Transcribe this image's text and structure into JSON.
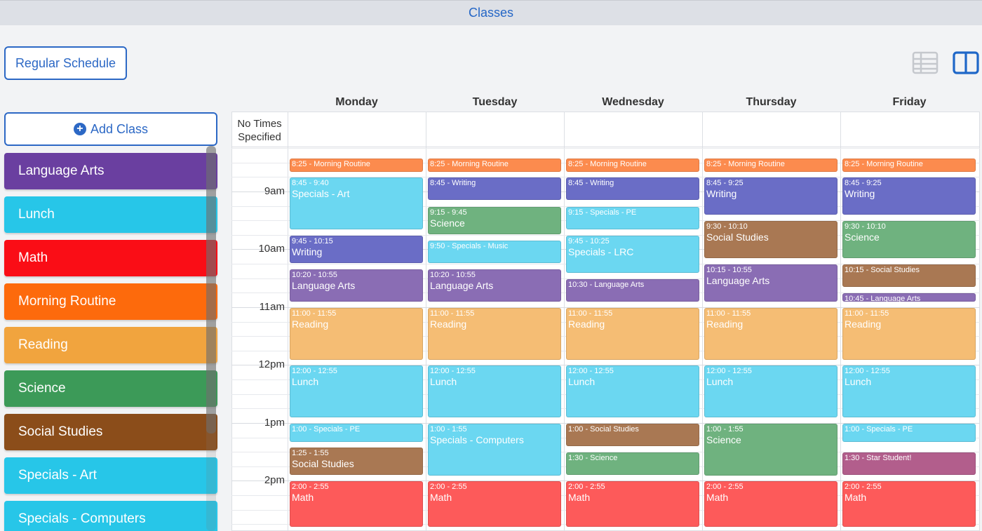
{
  "window": {
    "title": "Classes"
  },
  "toolbar": {
    "schedule_label": "Regular Schedule",
    "list_view_icon": "list-view-icon",
    "calendar_view_icon": "calendar-view-icon",
    "active_view": "calendar"
  },
  "sidebar": {
    "add_label": "Add Class",
    "classes": [
      {
        "name": "Language Arts",
        "color": "#6a3fa0"
      },
      {
        "name": "Lunch",
        "color": "#27c6e8"
      },
      {
        "name": "Math",
        "color": "#fa0d16"
      },
      {
        "name": "Morning Routine",
        "color": "#fd6a0c"
      },
      {
        "name": "Reading",
        "color": "#f1a43e"
      },
      {
        "name": "Science",
        "color": "#3c9a58"
      },
      {
        "name": "Social Studies",
        "color": "#8b4d1a"
      },
      {
        "name": "Specials - Art",
        "color": "#27c6e8"
      },
      {
        "name": "Specials - Computers",
        "color": "#27c6e8"
      }
    ]
  },
  "calendar": {
    "days": [
      "Monday",
      "Tuesday",
      "Wednesday",
      "Thursday",
      "Friday"
    ],
    "no_times_label": "No Times Specified",
    "time_labels": [
      "9am",
      "10am",
      "11am",
      "12pm",
      "1pm",
      "2pm"
    ],
    "start_time": "8:15",
    "events": [
      {
        "day": 0,
        "start": "8:25",
        "end": "8:40",
        "time": "8:25 - Morning Routine",
        "name": "",
        "color": "#fc8b4e"
      },
      {
        "day": 1,
        "start": "8:25",
        "end": "8:40",
        "time": "8:25 - Morning Routine",
        "name": "",
        "color": "#fc8b4e"
      },
      {
        "day": 2,
        "start": "8:25",
        "end": "8:40",
        "time": "8:25 - Morning Routine",
        "name": "",
        "color": "#fc8b4e"
      },
      {
        "day": 3,
        "start": "8:25",
        "end": "8:40",
        "time": "8:25 - Morning Routine",
        "name": "",
        "color": "#fc8b4e"
      },
      {
        "day": 4,
        "start": "8:25",
        "end": "8:40",
        "time": "8:25 - Morning Routine",
        "name": "",
        "color": "#fc8b4e"
      },
      {
        "day": 0,
        "start": "8:45",
        "end": "9:40",
        "time": "8:45 - 9:40",
        "name": "Specials - Art",
        "color": "#6bd7f1"
      },
      {
        "day": 0,
        "start": "9:45",
        "end": "10:15",
        "time": "9:45 - 10:15",
        "name": "Writing",
        "color": "#6a6dc6"
      },
      {
        "day": 0,
        "start": "10:20",
        "end": "10:55",
        "time": "10:20 - 10:55",
        "name": "Language Arts",
        "color": "#8a6db4"
      },
      {
        "day": 0,
        "start": "11:00",
        "end": "11:55",
        "time": "11:00 - 11:55",
        "name": "Reading",
        "color": "#f5bd74"
      },
      {
        "day": 0,
        "start": "12:00",
        "end": "12:55",
        "time": "12:00 - 12:55",
        "name": "Lunch",
        "color": "#6bd7f1"
      },
      {
        "day": 0,
        "start": "1:00",
        "end": "1:20",
        "time": "1:00 - Specials - PE",
        "name": "",
        "color": "#6bd7f1"
      },
      {
        "day": 0,
        "start": "1:25",
        "end": "1:55",
        "time": "1:25 - 1:55",
        "name": "Social Studies",
        "color": "#a97853"
      },
      {
        "day": 0,
        "start": "2:00",
        "end": "2:55",
        "time": "2:00 - 2:55",
        "name": "Math",
        "color": "#fd5a5a"
      },
      {
        "day": 1,
        "start": "8:45",
        "end": "9:10",
        "time": "8:45 - Writing",
        "name": "",
        "color": "#6a6dc6"
      },
      {
        "day": 1,
        "start": "9:15",
        "end": "9:45",
        "time": "9:15 - 9:45",
        "name": "Science",
        "color": "#6fb27f"
      },
      {
        "day": 1,
        "start": "9:50",
        "end": "10:15",
        "time": "9:50 - Specials - Music",
        "name": "",
        "color": "#6bd7f1"
      },
      {
        "day": 1,
        "start": "10:20",
        "end": "10:55",
        "time": "10:20 - 10:55",
        "name": "Language Arts",
        "color": "#8a6db4"
      },
      {
        "day": 1,
        "start": "11:00",
        "end": "11:55",
        "time": "11:00 - 11:55",
        "name": "Reading",
        "color": "#f5bd74"
      },
      {
        "day": 1,
        "start": "12:00",
        "end": "12:55",
        "time": "12:00 - 12:55",
        "name": "Lunch",
        "color": "#6bd7f1"
      },
      {
        "day": 1,
        "start": "1:00",
        "end": "1:55",
        "time": "1:00 - 1:55",
        "name": "Specials - Computers",
        "color": "#6bd7f1"
      },
      {
        "day": 1,
        "start": "2:00",
        "end": "2:55",
        "time": "2:00 - 2:55",
        "name": "Math",
        "color": "#fd5a5a"
      },
      {
        "day": 2,
        "start": "8:45",
        "end": "9:10",
        "time": "8:45 - Writing",
        "name": "",
        "color": "#6a6dc6"
      },
      {
        "day": 2,
        "start": "9:15",
        "end": "9:40",
        "time": "9:15 - Specials - PE",
        "name": "",
        "color": "#6bd7f1"
      },
      {
        "day": 2,
        "start": "9:45",
        "end": "10:25",
        "time": "9:45 - 10:25",
        "name": "Specials - LRC",
        "color": "#6bd7f1"
      },
      {
        "day": 2,
        "start": "10:30",
        "end": "10:55",
        "time": "10:30 - Language Arts",
        "name": "",
        "color": "#8a6db4"
      },
      {
        "day": 2,
        "start": "11:00",
        "end": "11:55",
        "time": "11:00 - 11:55",
        "name": "Reading",
        "color": "#f5bd74"
      },
      {
        "day": 2,
        "start": "12:00",
        "end": "12:55",
        "time": "12:00 - 12:55",
        "name": "Lunch",
        "color": "#6bd7f1"
      },
      {
        "day": 2,
        "start": "1:00",
        "end": "1:25",
        "time": "1:00 - Social Studies",
        "name": "",
        "color": "#a97853"
      },
      {
        "day": 2,
        "start": "1:30",
        "end": "1:55",
        "time": "1:30 - Science",
        "name": "",
        "color": "#6fb27f"
      },
      {
        "day": 2,
        "start": "2:00",
        "end": "2:55",
        "time": "2:00 - 2:55",
        "name": "Math",
        "color": "#fd5a5a"
      },
      {
        "day": 3,
        "start": "8:45",
        "end": "9:25",
        "time": "8:45 - 9:25",
        "name": "Writing",
        "color": "#6a6dc6"
      },
      {
        "day": 3,
        "start": "9:30",
        "end": "10:10",
        "time": "9:30 - 10:10",
        "name": "Social Studies",
        "color": "#a97853"
      },
      {
        "day": 3,
        "start": "10:15",
        "end": "10:55",
        "time": "10:15 - 10:55",
        "name": "Language Arts",
        "color": "#8a6db4"
      },
      {
        "day": 3,
        "start": "11:00",
        "end": "11:55",
        "time": "11:00 - 11:55",
        "name": "Reading",
        "color": "#f5bd74"
      },
      {
        "day": 3,
        "start": "12:00",
        "end": "12:55",
        "time": "12:00 - 12:55",
        "name": "Lunch",
        "color": "#6bd7f1"
      },
      {
        "day": 3,
        "start": "1:00",
        "end": "1:55",
        "time": "1:00 - 1:55",
        "name": "Science",
        "color": "#6fb27f"
      },
      {
        "day": 3,
        "start": "2:00",
        "end": "2:55",
        "time": "2:00 - 2:55",
        "name": "Math",
        "color": "#fd5a5a"
      },
      {
        "day": 4,
        "start": "8:45",
        "end": "9:25",
        "time": "8:45 - 9:25",
        "name": "Writing",
        "color": "#6a6dc6"
      },
      {
        "day": 4,
        "start": "9:30",
        "end": "10:10",
        "time": "9:30 - 10:10",
        "name": "Science",
        "color": "#6fb27f"
      },
      {
        "day": 4,
        "start": "10:15",
        "end": "10:40",
        "time": "10:15 - Social Studies",
        "name": "",
        "color": "#a97853"
      },
      {
        "day": 4,
        "start": "10:45",
        "end": "10:55",
        "time": "10:45 - Language Arts",
        "name": "",
        "color": "#8a6db4"
      },
      {
        "day": 4,
        "start": "11:00",
        "end": "11:55",
        "time": "11:00 - 11:55",
        "name": "Reading",
        "color": "#f5bd74"
      },
      {
        "day": 4,
        "start": "12:00",
        "end": "12:55",
        "time": "12:00 - 12:55",
        "name": "Lunch",
        "color": "#6bd7f1"
      },
      {
        "day": 4,
        "start": "1:00",
        "end": "1:20",
        "time": "1:00 - Specials - PE",
        "name": "",
        "color": "#6bd7f1"
      },
      {
        "day": 4,
        "start": "1:30",
        "end": "1:55",
        "time": "1:30 - Star Student!",
        "name": "",
        "color": "#b25e8c"
      },
      {
        "day": 4,
        "start": "2:00",
        "end": "2:55",
        "time": "2:00 - 2:55",
        "name": "Math",
        "color": "#fd5a5a"
      }
    ]
  }
}
